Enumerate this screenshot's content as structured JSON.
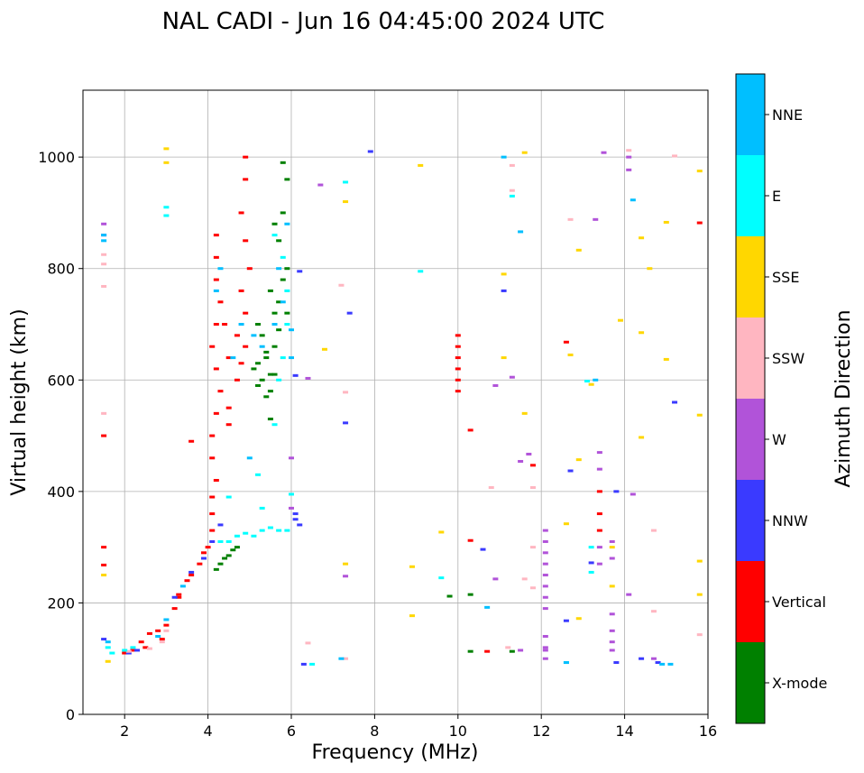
{
  "chart_data": {
    "type": "scatter",
    "title": "NAL CADI - Jun 16 04:45:00 2024 UTC",
    "xlabel": "Frequency (MHz)",
    "ylabel": "Virtual height (km)",
    "xlim": [
      1,
      16
    ],
    "ylim": [
      0,
      1120
    ],
    "xticks": [
      2,
      4,
      6,
      8,
      10,
      12,
      14,
      16
    ],
    "yticks": [
      0,
      200,
      400,
      600,
      800,
      1000
    ],
    "grid": true,
    "colorbar": {
      "label": "Azimuth Direction",
      "categories": [
        {
          "name": "X-mode",
          "color": "#008000"
        },
        {
          "name": "Vertical",
          "color": "#ff0000"
        },
        {
          "name": "NNW",
          "color": "#3a3aff"
        },
        {
          "name": "W",
          "color": "#b153d9"
        },
        {
          "name": "SSW",
          "color": "#ffb6c1"
        },
        {
          "name": "SSE",
          "color": "#ffd700"
        },
        {
          "name": "E",
          "color": "#00ffff"
        },
        {
          "name": "NNE",
          "color": "#00bfff"
        }
      ]
    },
    "series": [
      {
        "name": "X-mode",
        "points": [
          [
            4.3,
            270
          ],
          [
            4.4,
            280
          ],
          [
            4.5,
            285
          ],
          [
            4.6,
            295
          ],
          [
            4.7,
            300
          ],
          [
            4.2,
            260
          ],
          [
            5.1,
            620
          ],
          [
            5.2,
            630
          ],
          [
            5.3,
            600
          ],
          [
            5.4,
            640
          ],
          [
            5.5,
            610
          ],
          [
            5.6,
            660
          ],
          [
            5.7,
            690
          ],
          [
            5.5,
            580
          ],
          [
            5.4,
            570
          ],
          [
            5.2,
            700
          ],
          [
            5.6,
            720
          ],
          [
            5.8,
            780
          ],
          [
            5.9,
            800
          ],
          [
            5.7,
            850
          ],
          [
            5.8,
            900
          ],
          [
            5.6,
            880
          ],
          [
            5.9,
            960
          ],
          [
            5.8,
            990
          ],
          [
            5.5,
            760
          ],
          [
            5.3,
            680
          ],
          [
            5.6,
            610
          ],
          [
            5.7,
            740
          ],
          [
            5.9,
            720
          ],
          [
            5.4,
            650
          ],
          [
            5.2,
            590
          ],
          [
            5.5,
            530
          ],
          [
            10.3,
            215
          ],
          [
            10.3,
            113
          ],
          [
            9.8,
            212
          ],
          [
            11.3,
            113
          ]
        ]
      },
      {
        "name": "Vertical",
        "points": [
          [
            1.5,
            500
          ],
          [
            1.5,
            300
          ],
          [
            1.5,
            268
          ],
          [
            2.0,
            110
          ],
          [
            2.2,
            115
          ],
          [
            2.4,
            130
          ],
          [
            2.6,
            145
          ],
          [
            2.8,
            150
          ],
          [
            2.9,
            135
          ],
          [
            3.0,
            160
          ],
          [
            3.2,
            190
          ],
          [
            3.3,
            210
          ],
          [
            3.5,
            240
          ],
          [
            3.6,
            250
          ],
          [
            3.8,
            270
          ],
          [
            3.9,
            290
          ],
          [
            4.0,
            300
          ],
          [
            4.1,
            330
          ],
          [
            4.1,
            360
          ],
          [
            4.1,
            390
          ],
          [
            4.2,
            420
          ],
          [
            4.1,
            460
          ],
          [
            4.1,
            500
          ],
          [
            4.2,
            540
          ],
          [
            4.3,
            580
          ],
          [
            4.2,
            620
          ],
          [
            4.1,
            660
          ],
          [
            4.2,
            700
          ],
          [
            4.3,
            740
          ],
          [
            4.2,
            780
          ],
          [
            4.2,
            820
          ],
          [
            4.2,
            860
          ],
          [
            4.5,
            520
          ],
          [
            4.5,
            550
          ],
          [
            4.7,
            600
          ],
          [
            4.8,
            630
          ],
          [
            4.9,
            660
          ],
          [
            4.7,
            680
          ],
          [
            4.9,
            720
          ],
          [
            4.8,
            760
          ],
          [
            5.0,
            800
          ],
          [
            4.9,
            850
          ],
          [
            4.8,
            900
          ],
          [
            4.9,
            960
          ],
          [
            4.9,
            1000
          ],
          [
            4.5,
            640
          ],
          [
            4.4,
            700
          ],
          [
            3.6,
            490
          ],
          [
            3.3,
            215
          ],
          [
            2.5,
            120
          ],
          [
            10.0,
            580
          ],
          [
            10.0,
            600
          ],
          [
            10.0,
            620
          ],
          [
            10.0,
            640
          ],
          [
            10.0,
            660
          ],
          [
            10.0,
            680
          ],
          [
            10.3,
            510
          ],
          [
            10.3,
            312
          ],
          [
            10.7,
            113
          ],
          [
            11.8,
            447
          ],
          [
            12.6,
            668
          ],
          [
            13.4,
            330
          ],
          [
            13.4,
            360
          ],
          [
            13.4,
            400
          ],
          [
            15.8,
            882
          ]
        ]
      },
      {
        "name": "NNW",
        "points": [
          [
            1.5,
            135
          ],
          [
            2.1,
            110
          ],
          [
            2.3,
            115
          ],
          [
            3.2,
            210
          ],
          [
            3.6,
            255
          ],
          [
            3.9,
            280
          ],
          [
            4.1,
            310
          ],
          [
            4.3,
            340
          ],
          [
            6.1,
            350
          ],
          [
            6.2,
            340
          ],
          [
            6.1,
            360
          ],
          [
            6.2,
            795
          ],
          [
            6.1,
            608
          ],
          [
            6.3,
            90
          ],
          [
            7.9,
            1010
          ],
          [
            7.4,
            720
          ],
          [
            7.3,
            523
          ],
          [
            10.6,
            296
          ],
          [
            11.1,
            760
          ],
          [
            12.7,
            437
          ],
          [
            13.2,
            272
          ],
          [
            12.6,
            168
          ],
          [
            13.8,
            400
          ],
          [
            13.8,
            93
          ],
          [
            15.2,
            560
          ],
          [
            14.8,
            93
          ],
          [
            14.4,
            100
          ]
        ]
      },
      {
        "name": "W",
        "points": [
          [
            1.5,
            880
          ],
          [
            1.5,
            860
          ],
          [
            6.0,
            460
          ],
          [
            6.0,
            370
          ],
          [
            6.7,
            950
          ],
          [
            6.4,
            603
          ],
          [
            7.3,
            248
          ],
          [
            10.9,
            590
          ],
          [
            10.9,
            243
          ],
          [
            11.3,
            605
          ],
          [
            11.5,
            454
          ],
          [
            11.7,
            467
          ],
          [
            11.5,
            115
          ],
          [
            12.1,
            115
          ],
          [
            12.1,
            100
          ],
          [
            12.1,
            120
          ],
          [
            12.1,
            140
          ],
          [
            12.1,
            190
          ],
          [
            12.1,
            210
          ],
          [
            12.1,
            230
          ],
          [
            12.1,
            250
          ],
          [
            12.1,
            270
          ],
          [
            12.1,
            290
          ],
          [
            12.1,
            310
          ],
          [
            12.1,
            330
          ],
          [
            13.3,
            888
          ],
          [
            13.5,
            1008
          ],
          [
            13.4,
            270
          ],
          [
            13.4,
            300
          ],
          [
            13.4,
            440
          ],
          [
            13.4,
            470
          ],
          [
            13.7,
            280
          ],
          [
            13.7,
            310
          ],
          [
            13.7,
            180
          ],
          [
            13.7,
            150
          ],
          [
            13.7,
            130
          ],
          [
            13.7,
            115
          ],
          [
            14.2,
            395
          ],
          [
            14.1,
            215
          ],
          [
            14.1,
            1000
          ],
          [
            14.1,
            977
          ],
          [
            14.7,
            100
          ]
        ]
      },
      {
        "name": "SSW",
        "points": [
          [
            1.5,
            808
          ],
          [
            1.5,
            768
          ],
          [
            1.5,
            540
          ],
          [
            1.5,
            825
          ],
          [
            2.1,
            113
          ],
          [
            2.6,
            118
          ],
          [
            2.9,
            130
          ],
          [
            3.0,
            150
          ],
          [
            6.4,
            128
          ],
          [
            7.3,
            100
          ],
          [
            7.3,
            578
          ],
          [
            7.2,
            770
          ],
          [
            10.8,
            407
          ],
          [
            11.2,
            120
          ],
          [
            11.3,
            985
          ],
          [
            11.3,
            940
          ],
          [
            11.6,
            243
          ],
          [
            11.8,
            300
          ],
          [
            11.8,
            407
          ],
          [
            11.8,
            227
          ],
          [
            12.7,
            888
          ],
          [
            14.1,
            1012
          ],
          [
            14.7,
            330
          ],
          [
            14.7,
            185
          ],
          [
            15.2,
            1002
          ],
          [
            15.8,
            143
          ]
        ]
      },
      {
        "name": "SSE",
        "points": [
          [
            1.6,
            95
          ],
          [
            1.5,
            250
          ],
          [
            3.0,
            990
          ],
          [
            3.0,
            1015
          ],
          [
            7.3,
            270
          ],
          [
            7.3,
            920
          ],
          [
            6.8,
            655
          ],
          [
            8.9,
            265
          ],
          [
            8.9,
            177
          ],
          [
            9.1,
            985
          ],
          [
            9.6,
            327
          ],
          [
            11.1,
            790
          ],
          [
            11.1,
            640
          ],
          [
            11.6,
            1008
          ],
          [
            11.6,
            540
          ],
          [
            12.6,
            342
          ],
          [
            12.7,
            645
          ],
          [
            12.9,
            457
          ],
          [
            12.9,
            833
          ],
          [
            12.9,
            172
          ],
          [
            13.2,
            592
          ],
          [
            13.7,
            230
          ],
          [
            13.7,
            300
          ],
          [
            13.9,
            707
          ],
          [
            14.4,
            855
          ],
          [
            14.4,
            685
          ],
          [
            14.4,
            497
          ],
          [
            14.6,
            800
          ],
          [
            15.0,
            883
          ],
          [
            15.0,
            637
          ],
          [
            15.8,
            975
          ],
          [
            15.8,
            537
          ],
          [
            15.8,
            275
          ],
          [
            15.8,
            215
          ]
        ]
      },
      {
        "name": "E",
        "points": [
          [
            1.6,
            120
          ],
          [
            1.7,
            110
          ],
          [
            2.0,
            115
          ],
          [
            2.2,
            120
          ],
          [
            4.3,
            310
          ],
          [
            4.5,
            310
          ],
          [
            4.7,
            320
          ],
          [
            4.9,
            325
          ],
          [
            5.1,
            320
          ],
          [
            5.3,
            330
          ],
          [
            5.5,
            335
          ],
          [
            5.7,
            330
          ],
          [
            5.9,
            330
          ],
          [
            6.0,
            395
          ],
          [
            5.6,
            520
          ],
          [
            5.7,
            600
          ],
          [
            5.8,
            640
          ],
          [
            5.9,
            700
          ],
          [
            5.9,
            760
          ],
          [
            5.8,
            820
          ],
          [
            5.6,
            860
          ],
          [
            5.3,
            370
          ],
          [
            5.2,
            430
          ],
          [
            4.5,
            390
          ],
          [
            3.0,
            910
          ],
          [
            3.0,
            895
          ],
          [
            7.3,
            955
          ],
          [
            6.5,
            90
          ],
          [
            9.1,
            795
          ],
          [
            9.6,
            245
          ],
          [
            11.3,
            930
          ],
          [
            13.2,
            255
          ],
          [
            13.2,
            300
          ],
          [
            13.1,
            598
          ],
          [
            12.6,
            93
          ]
        ]
      },
      {
        "name": "NNE",
        "points": [
          [
            1.5,
            860
          ],
          [
            1.5,
            850
          ],
          [
            1.6,
            130
          ],
          [
            2.8,
            140
          ],
          [
            3.0,
            170
          ],
          [
            3.4,
            230
          ],
          [
            4.3,
            800
          ],
          [
            4.2,
            760
          ],
          [
            4.6,
            640
          ],
          [
            4.8,
            700
          ],
          [
            5.1,
            680
          ],
          [
            5.3,
            660
          ],
          [
            5.6,
            700
          ],
          [
            5.8,
            740
          ],
          [
            5.9,
            880
          ],
          [
            5.7,
            800
          ],
          [
            6.0,
            690
          ],
          [
            6.0,
            640
          ],
          [
            5.0,
            460
          ],
          [
            7.2,
            100
          ],
          [
            10.7,
            192
          ],
          [
            11.1,
            1000
          ],
          [
            11.5,
            866
          ],
          [
            12.6,
            93
          ],
          [
            13.3,
            600
          ],
          [
            14.2,
            923
          ],
          [
            14.9,
            90
          ],
          [
            15.1,
            90
          ]
        ]
      }
    ]
  }
}
